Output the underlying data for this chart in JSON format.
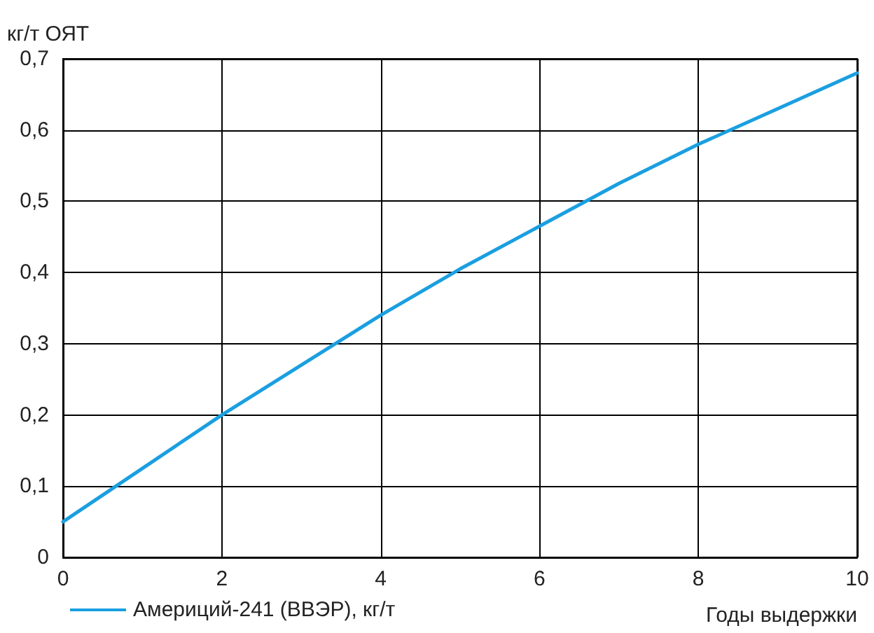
{
  "chart_data": {
    "type": "line",
    "xlabel": "Годы выдержки",
    "ylabel": "кг/т ОЯТ",
    "x": [
      0,
      1,
      2,
      3,
      4,
      5,
      6,
      7,
      8,
      9,
      10
    ],
    "series": [
      {
        "name": "Америций-241 (ВВЭР), кг/т",
        "color": "#1a9fe0",
        "values": [
          0.05,
          0.125,
          0.2,
          0.27,
          0.34,
          0.405,
          0.465,
          0.525,
          0.58,
          0.63,
          0.68
        ]
      }
    ],
    "xlim": [
      0,
      10
    ],
    "xticks": [
      0,
      2,
      4,
      6,
      8,
      10
    ],
    "ylim": [
      0,
      0.7
    ],
    "yticks": [
      0,
      {
        "value": 0.1,
        "label": "0,1"
      },
      {
        "value": 0.2,
        "label": "0,2"
      },
      {
        "value": 0.3,
        "label": "0,3"
      },
      {
        "value": 0.4,
        "label": "0,4"
      },
      {
        "value": 0.5,
        "label": "0,5"
      },
      {
        "value": 0.6,
        "label": "0,6"
      },
      {
        "value": 0.7,
        "label": "0,7"
      }
    ],
    "grid": true,
    "legend": "bottom left",
    "marker": "none",
    "line_style": "solid"
  }
}
